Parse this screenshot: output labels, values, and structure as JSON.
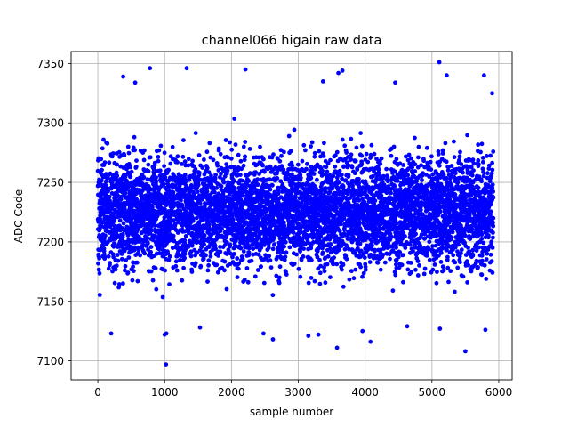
{
  "chart_data": {
    "type": "scatter",
    "title": "channel066 higain raw data",
    "xlabel": "sample number",
    "ylabel": "ADC Code",
    "xlim": [
      -400,
      6200
    ],
    "ylim": [
      7084,
      7360
    ],
    "xticks": [
      0,
      1000,
      2000,
      3000,
      4000,
      5000,
      6000
    ],
    "yticks": [
      7100,
      7150,
      7200,
      7250,
      7300,
      7350
    ],
    "grid": true,
    "marker_color": "#0000ff",
    "n_samples": 5920,
    "typical_range": [
      7140,
      7300
    ],
    "mean_approx": 7226,
    "series": [
      {
        "values_summary": "dense band of ~5920 points, x = 0..5919, y mostly 7150..7300, centered near 7226",
        "outliers": [
          {
            "x": 1020,
            "y": 7097
          },
          {
            "x": 1000,
            "y": 7122
          },
          {
            "x": 1025,
            "y": 7123
          },
          {
            "x": 200,
            "y": 7123
          },
          {
            "x": 1530,
            "y": 7128
          },
          {
            "x": 2480,
            "y": 7123
          },
          {
            "x": 2620,
            "y": 7118
          },
          {
            "x": 3150,
            "y": 7121
          },
          {
            "x": 3300,
            "y": 7122
          },
          {
            "x": 3580,
            "y": 7111
          },
          {
            "x": 3960,
            "y": 7125
          },
          {
            "x": 4080,
            "y": 7116
          },
          {
            "x": 4630,
            "y": 7129
          },
          {
            "x": 5120,
            "y": 7127
          },
          {
            "x": 5500,
            "y": 7108
          },
          {
            "x": 5800,
            "y": 7126
          },
          {
            "x": 780,
            "y": 7346
          },
          {
            "x": 1330,
            "y": 7346
          },
          {
            "x": 2210,
            "y": 7345
          },
          {
            "x": 3600,
            "y": 7342
          },
          {
            "x": 3660,
            "y": 7344
          },
          {
            "x": 5110,
            "y": 7351
          },
          {
            "x": 5780,
            "y": 7340
          },
          {
            "x": 380,
            "y": 7339
          },
          {
            "x": 560,
            "y": 7334
          },
          {
            "x": 3370,
            "y": 7335
          },
          {
            "x": 4450,
            "y": 7334
          },
          {
            "x": 5220,
            "y": 7340
          },
          {
            "x": 5900,
            "y": 7325
          }
        ]
      }
    ]
  }
}
